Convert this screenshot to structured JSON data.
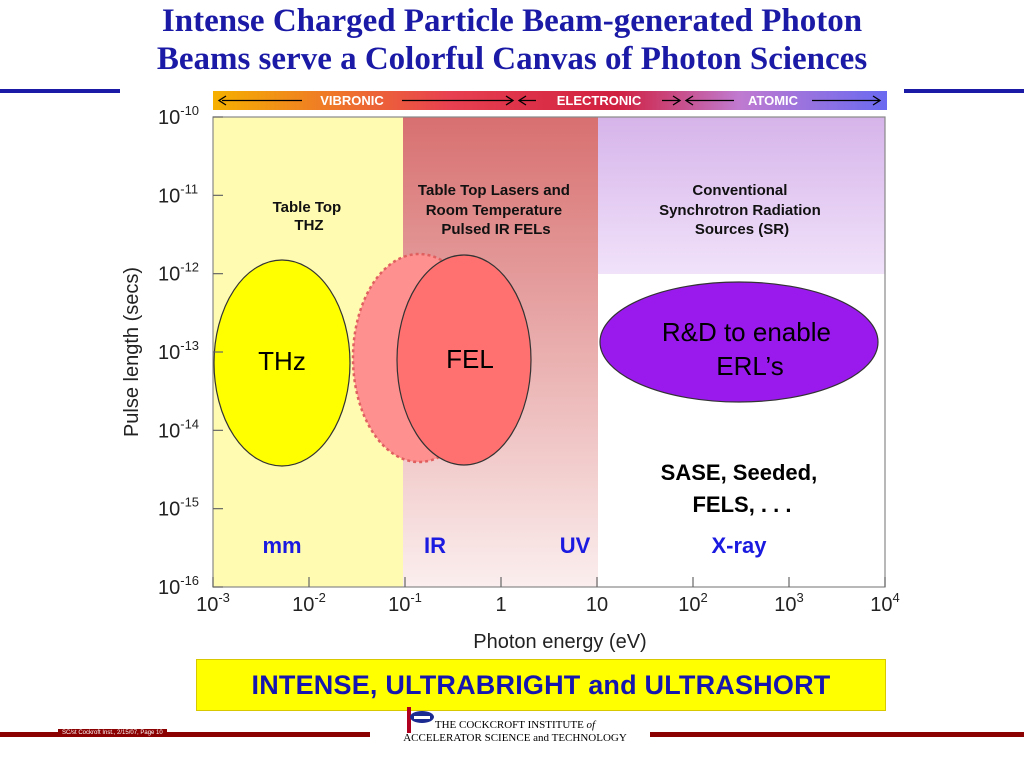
{
  "slide": {
    "title_line1": "Intense Charged Particle Beam-generated Photon",
    "title_line2": "Beams serve a Colorful Canvas of Photon Sciences",
    "banner": "INTENSE, ULTRABRIGHT and ULTRASHORT",
    "footer_label": "SC/st  Cockroft Inst., 2/15/07, Page 10",
    "institute_line1": "THE COCKCROFT INSTITUTE",
    "institute_of": "of",
    "institute_line2": "ACCELERATOR SCIENCE and TECHNOLOGY",
    "colors": {
      "title": "#1a1aa6",
      "footer": "#8b0000",
      "banner_bg": "#ffff00",
      "banner_text": "#1515b0"
    }
  },
  "diagram": {
    "xlabel": "Photon energy (eV)",
    "ylabel": "Pulse length (secs)",
    "x_scale": "log",
    "y_scale": "log",
    "xlim": [
      0.001,
      10000
    ],
    "ylim": [
      1e-16,
      1e-10
    ],
    "x_ticks": [
      {
        "base": "10",
        "exp": "-3"
      },
      {
        "base": "10",
        "exp": "-2"
      },
      {
        "base": "10",
        "exp": "-1"
      },
      {
        "base": "1",
        "exp": ""
      },
      {
        "base": "10",
        "exp": ""
      },
      {
        "base": "10",
        "exp": "2"
      },
      {
        "base": "10",
        "exp": "3"
      },
      {
        "base": "10",
        "exp": "4"
      }
    ],
    "y_ticks": [
      {
        "base": "10",
        "exp": "-10"
      },
      {
        "base": "10",
        "exp": "-11"
      },
      {
        "base": "10",
        "exp": "-12"
      },
      {
        "base": "10",
        "exp": "-13"
      },
      {
        "base": "10",
        "exp": "-14"
      },
      {
        "base": "10",
        "exp": "-15"
      },
      {
        "base": "10",
        "exp": "-16"
      }
    ],
    "spectrum_bar": {
      "segments": [
        "VIBRONIC",
        "ELECTRONIC",
        "ATOMIC"
      ],
      "colors": [
        "#f0a000",
        "#e0304a",
        "#c03040",
        "#7070e0"
      ]
    },
    "regions": [
      {
        "name": "table-top-thz",
        "label_lines": [
          "Table  Top",
          "THZ"
        ],
        "color": "#fffbb0"
      },
      {
        "name": "table-top-lasers",
        "label_lines": [
          "Table  Top  Lasers  and",
          "Room  Temperature",
          "Pulsed  IR  FELs"
        ],
        "color": "#d86868"
      },
      {
        "name": "conventional-sr",
        "label_lines": [
          "Conventional",
          "Synchrotron  Radiation",
          "Sources  (SR)"
        ],
        "color": "#e4c2f2"
      }
    ],
    "ellipses": [
      {
        "name": "thz",
        "label": "THz",
        "color": "#ffff00"
      },
      {
        "name": "fel-shadow",
        "label": "",
        "color": "#ff9090"
      },
      {
        "name": "fel",
        "label": "FEL",
        "color": "#ff7070"
      },
      {
        "name": "erl",
        "label_lines": [
          "R&D to enable",
          "ERL’s"
        ],
        "color": "#9a1aee"
      }
    ],
    "annotation_lines": [
      "SASE, Seeded,",
      "FELS, . . ."
    ],
    "band_labels": [
      "mm",
      "IR",
      "UV",
      "X-ray"
    ],
    "band_color": "#1a1ae0"
  }
}
